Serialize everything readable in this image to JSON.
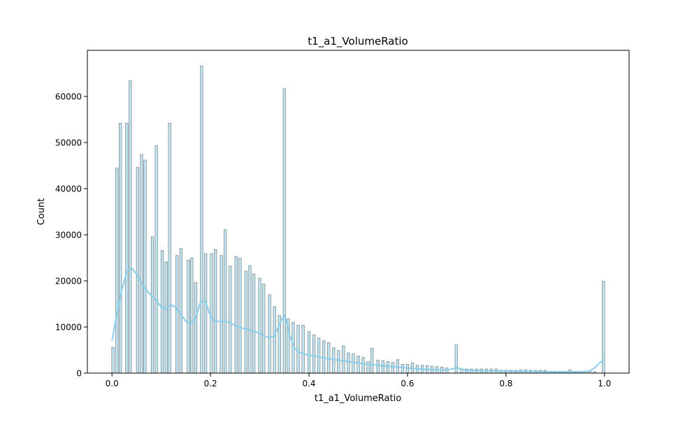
{
  "chart_data": {
    "type": "bar",
    "title": "t1_a1_VolumeRatio",
    "xlabel": "t1_a1_VolumeRatio",
    "ylabel": "Count",
    "xlim": [
      -0.05,
      1.05
    ],
    "ylim": [
      0,
      70000
    ],
    "xticks": [
      0.0,
      0.2,
      0.4,
      0.6,
      0.8,
      1.0
    ],
    "xtick_labels": [
      "0.0",
      "0.2",
      "0.4",
      "0.6",
      "0.8",
      "1.0"
    ],
    "yticks": [
      0,
      10000,
      20000,
      30000,
      40000,
      50000,
      60000
    ],
    "ytick_labels": [
      "0",
      "10000",
      "20000",
      "30000",
      "40000",
      "50000",
      "60000"
    ],
    "grid": false,
    "bar_fill": "#87ceeb",
    "bar_fill_opacity": 0.5,
    "bar_edge": "#7f8c8d",
    "kde_color": "#87ceeb",
    "bars": [
      [
        0.002,
        5600
      ],
      [
        0.01,
        44500
      ],
      [
        0.017,
        54200
      ],
      [
        0.03,
        54200
      ],
      [
        0.037,
        63400
      ],
      [
        0.052,
        44600
      ],
      [
        0.06,
        47400
      ],
      [
        0.067,
        46200
      ],
      [
        0.082,
        29600
      ],
      [
        0.09,
        49300
      ],
      [
        0.102,
        26600
      ],
      [
        0.11,
        24100
      ],
      [
        0.117,
        54200
      ],
      [
        0.132,
        25500
      ],
      [
        0.14,
        27000
      ],
      [
        0.155,
        24500
      ],
      [
        0.162,
        25000
      ],
      [
        0.17,
        19600
      ],
      [
        0.182,
        66600
      ],
      [
        0.19,
        25900
      ],
      [
        0.202,
        25900
      ],
      [
        0.21,
        26800
      ],
      [
        0.222,
        25500
      ],
      [
        0.23,
        31100
      ],
      [
        0.24,
        23200
      ],
      [
        0.252,
        25300
      ],
      [
        0.26,
        24900
      ],
      [
        0.272,
        22100
      ],
      [
        0.28,
        23300
      ],
      [
        0.288,
        21500
      ],
      [
        0.3,
        20600
      ],
      [
        0.308,
        19300
      ],
      [
        0.32,
        17000
      ],
      [
        0.33,
        14400
      ],
      [
        0.34,
        12500
      ],
      [
        0.35,
        61700
      ],
      [
        0.358,
        11800
      ],
      [
        0.368,
        11000
      ],
      [
        0.378,
        10400
      ],
      [
        0.388,
        10400
      ],
      [
        0.4,
        9000
      ],
      [
        0.41,
        8300
      ],
      [
        0.42,
        7600
      ],
      [
        0.43,
        7000
      ],
      [
        0.44,
        6600
      ],
      [
        0.45,
        5500
      ],
      [
        0.46,
        4900
      ],
      [
        0.47,
        5900
      ],
      [
        0.48,
        4400
      ],
      [
        0.49,
        4200
      ],
      [
        0.5,
        3700
      ],
      [
        0.51,
        3400
      ],
      [
        0.52,
        2500
      ],
      [
        0.528,
        5400
      ],
      [
        0.54,
        2800
      ],
      [
        0.55,
        2700
      ],
      [
        0.56,
        2500
      ],
      [
        0.57,
        2300
      ],
      [
        0.58,
        2900
      ],
      [
        0.59,
        1900
      ],
      [
        0.6,
        1900
      ],
      [
        0.61,
        2200
      ],
      [
        0.62,
        1700
      ],
      [
        0.63,
        1700
      ],
      [
        0.64,
        1600
      ],
      [
        0.65,
        1500
      ],
      [
        0.66,
        1400
      ],
      [
        0.67,
        1300
      ],
      [
        0.68,
        1100
      ],
      [
        0.699,
        6100
      ],
      [
        0.71,
        900
      ],
      [
        0.72,
        900
      ],
      [
        0.73,
        900
      ],
      [
        0.74,
        900
      ],
      [
        0.75,
        900
      ],
      [
        0.76,
        900
      ],
      [
        0.77,
        900
      ],
      [
        0.78,
        900
      ],
      [
        0.79,
        600
      ],
      [
        0.8,
        600
      ],
      [
        0.81,
        600
      ],
      [
        0.82,
        600
      ],
      [
        0.83,
        700
      ],
      [
        0.84,
        700
      ],
      [
        0.85,
        600
      ],
      [
        0.86,
        600
      ],
      [
        0.87,
        600
      ],
      [
        0.88,
        600
      ],
      [
        0.89,
        400
      ],
      [
        0.9,
        400
      ],
      [
        0.91,
        400
      ],
      [
        0.92,
        400
      ],
      [
        0.93,
        700
      ],
      [
        0.94,
        400
      ],
      [
        0.95,
        400
      ],
      [
        0.96,
        400
      ],
      [
        0.97,
        400
      ],
      [
        0.98,
        300
      ],
      [
        0.998,
        19900
      ]
    ],
    "kde": [
      [
        0.0,
        7000
      ],
      [
        0.01,
        13000
      ],
      [
        0.02,
        18000
      ],
      [
        0.03,
        22000
      ],
      [
        0.04,
        22800
      ],
      [
        0.05,
        21500
      ],
      [
        0.06,
        19500
      ],
      [
        0.07,
        18000
      ],
      [
        0.08,
        16800
      ],
      [
        0.09,
        15800
      ],
      [
        0.1,
        14300
      ],
      [
        0.11,
        14000
      ],
      [
        0.12,
        14800
      ],
      [
        0.13,
        14200
      ],
      [
        0.14,
        12800
      ],
      [
        0.15,
        11200
      ],
      [
        0.16,
        10800
      ],
      [
        0.17,
        12000
      ],
      [
        0.18,
        15500
      ],
      [
        0.19,
        15600
      ],
      [
        0.2,
        12300
      ],
      [
        0.21,
        11200
      ],
      [
        0.22,
        11200
      ],
      [
        0.23,
        11200
      ],
      [
        0.24,
        10900
      ],
      [
        0.25,
        10300
      ],
      [
        0.26,
        9900
      ],
      [
        0.27,
        9600
      ],
      [
        0.28,
        9300
      ],
      [
        0.29,
        9000
      ],
      [
        0.3,
        8600
      ],
      [
        0.31,
        8000
      ],
      [
        0.32,
        7700
      ],
      [
        0.33,
        8000
      ],
      [
        0.34,
        10700
      ],
      [
        0.35,
        12500
      ],
      [
        0.355,
        11000
      ],
      [
        0.36,
        8500
      ],
      [
        0.37,
        5500
      ],
      [
        0.38,
        4500
      ],
      [
        0.39,
        4200
      ],
      [
        0.4,
        3900
      ],
      [
        0.42,
        3500
      ],
      [
        0.44,
        3100
      ],
      [
        0.46,
        2800
      ],
      [
        0.48,
        2500
      ],
      [
        0.5,
        2200
      ],
      [
        0.52,
        1900
      ],
      [
        0.54,
        1700
      ],
      [
        0.56,
        1500
      ],
      [
        0.58,
        1300
      ],
      [
        0.6,
        1100
      ],
      [
        0.62,
        900
      ],
      [
        0.64,
        800
      ],
      [
        0.66,
        700
      ],
      [
        0.68,
        650
      ],
      [
        0.69,
        900
      ],
      [
        0.7,
        1200
      ],
      [
        0.71,
        900
      ],
      [
        0.72,
        600
      ],
      [
        0.74,
        550
      ],
      [
        0.76,
        500
      ],
      [
        0.78,
        450
      ],
      [
        0.8,
        400
      ],
      [
        0.82,
        380
      ],
      [
        0.84,
        350
      ],
      [
        0.86,
        330
      ],
      [
        0.88,
        300
      ],
      [
        0.9,
        290
      ],
      [
        0.92,
        280
      ],
      [
        0.94,
        270
      ],
      [
        0.96,
        280
      ],
      [
        0.97,
        500
      ],
      [
        0.98,
        1100
      ],
      [
        0.99,
        2200
      ],
      [
        1.0,
        3000
      ]
    ]
  }
}
